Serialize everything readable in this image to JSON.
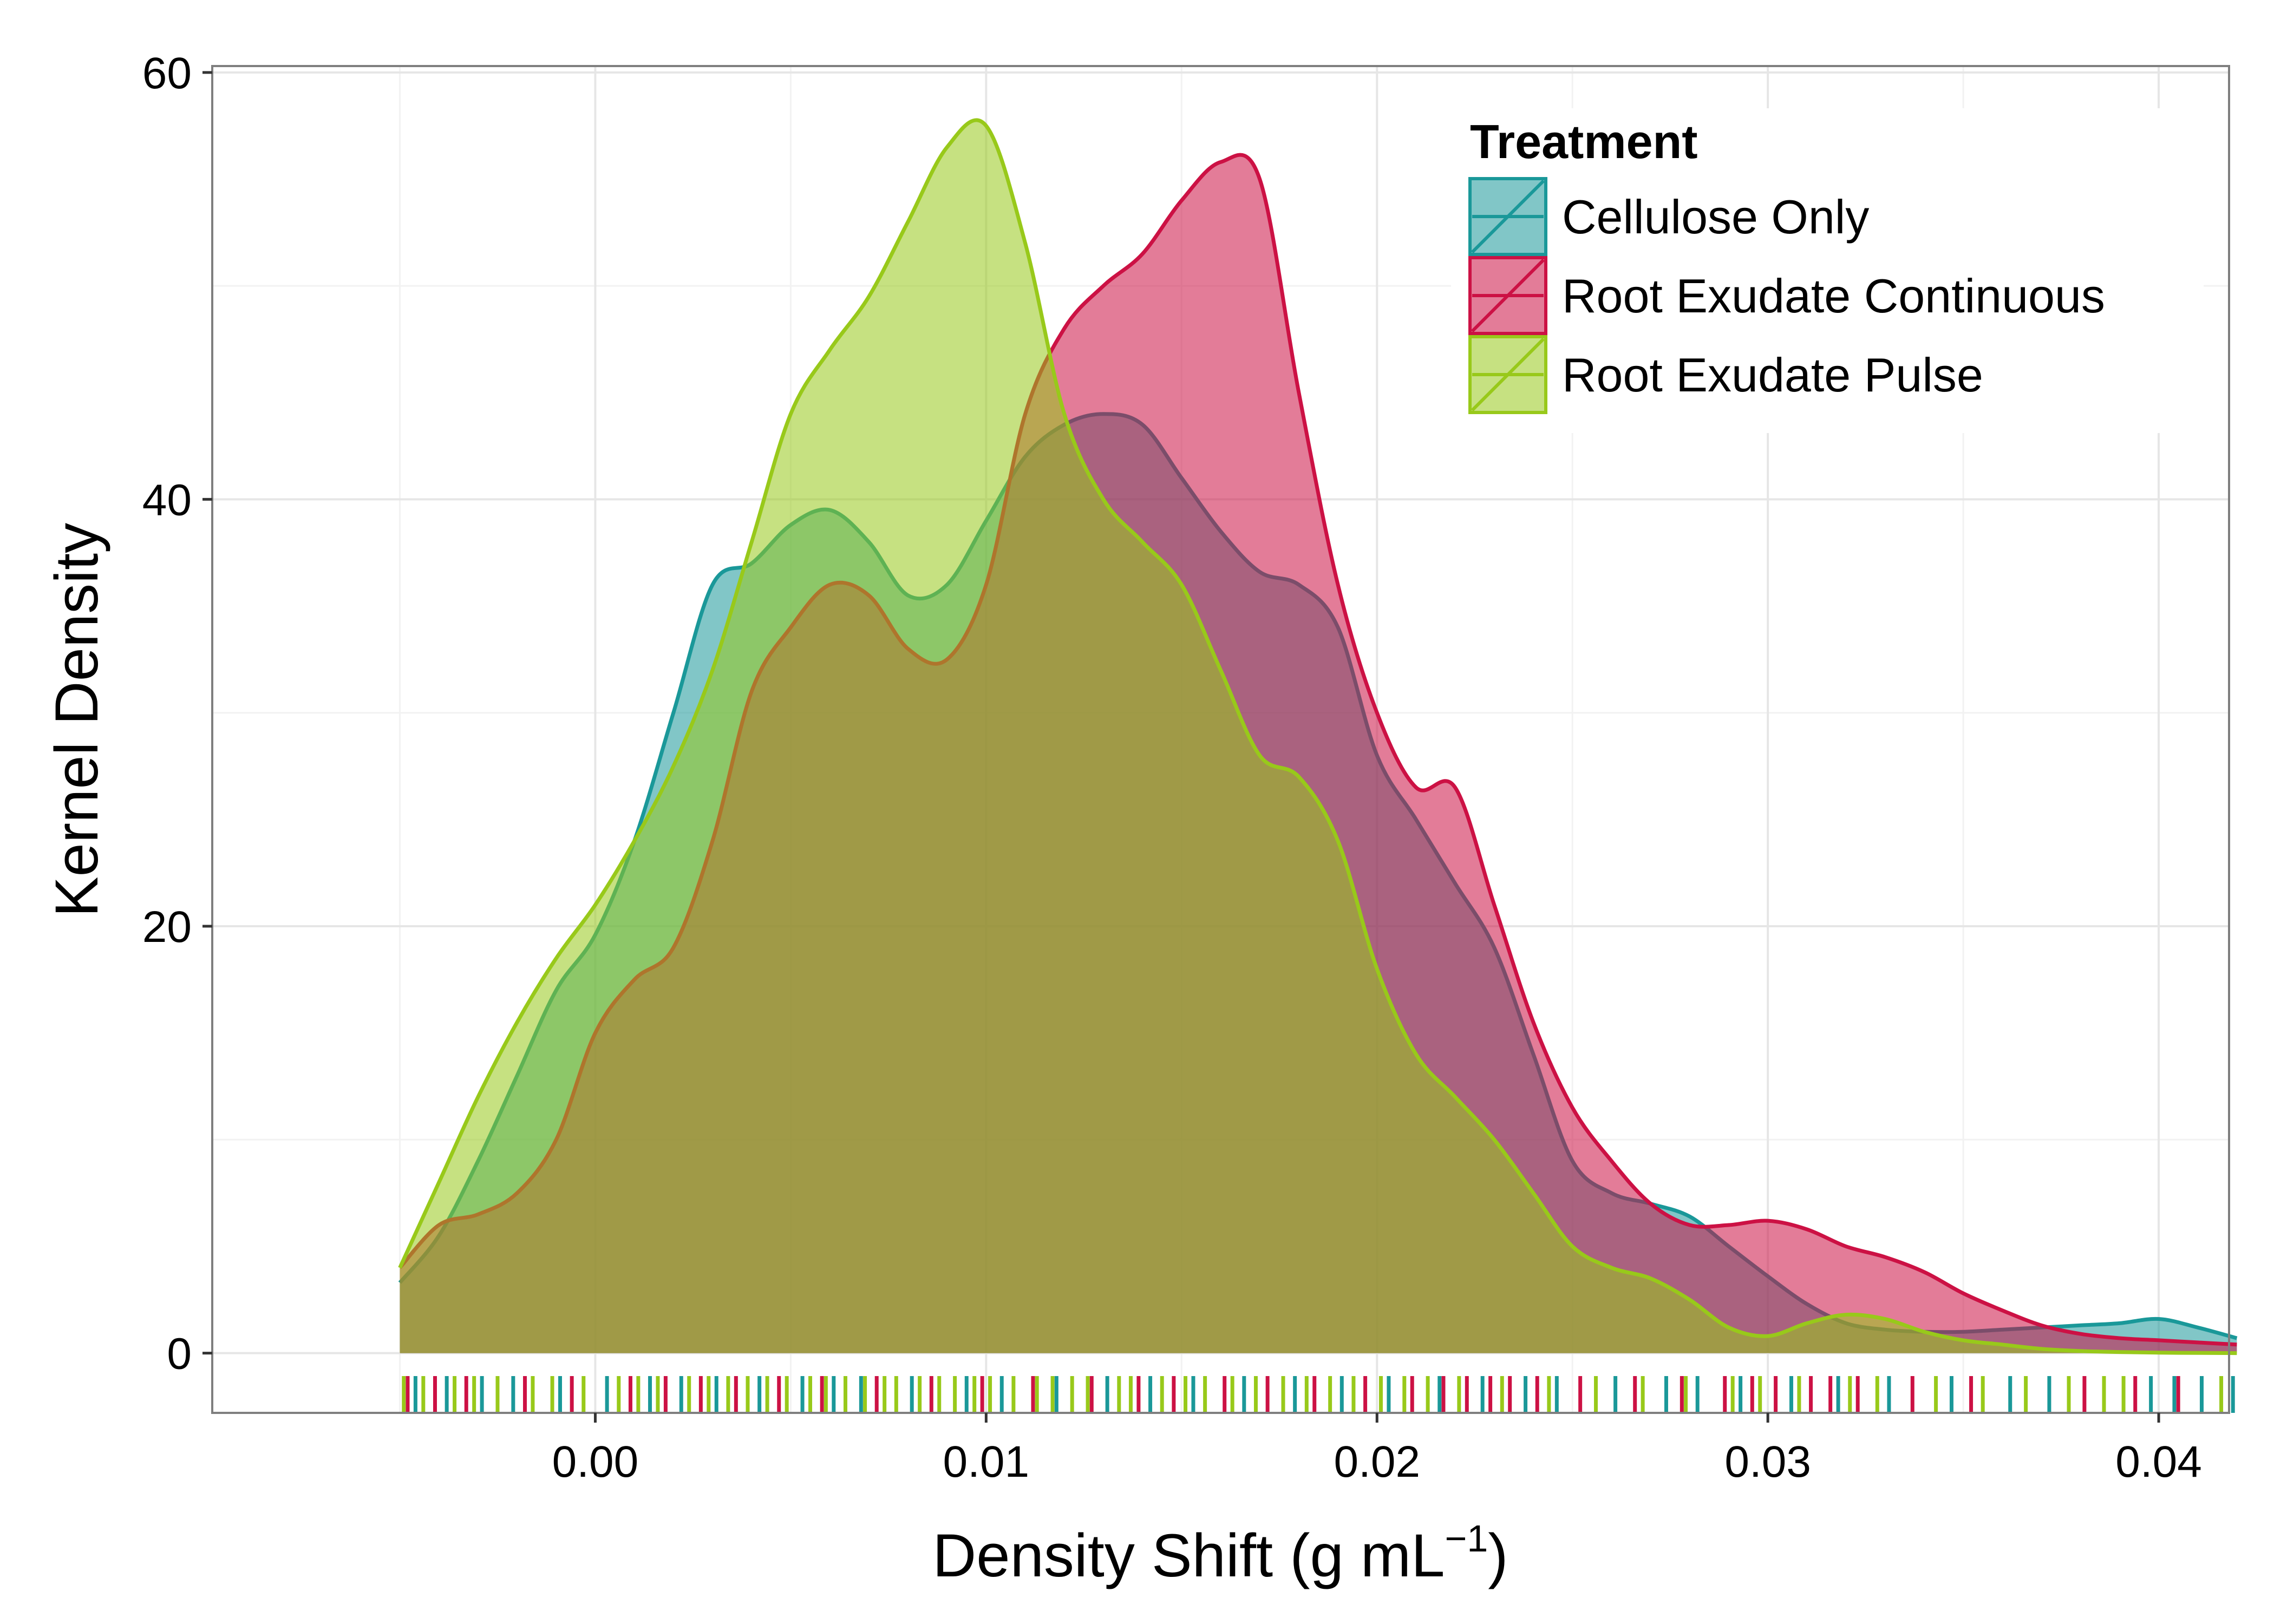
{
  "chart_data": {
    "type": "area",
    "title": "",
    "xlabel": "Density Shift (g mL",
    "xlabel_superscript": "−1",
    "xlabel_suffix": ")",
    "ylabel": "Kernel Density",
    "xlim": [
      -0.0098,
      0.0418
    ],
    "ylim": [
      -2.8,
      60.3
    ],
    "grid": true,
    "legend_position": "top-right",
    "x_ticks": [
      0.0,
      0.01,
      0.02,
      0.03,
      0.04
    ],
    "x_tick_labels": [
      "0.00",
      "0.01",
      "0.02",
      "0.03",
      "0.04"
    ],
    "y_ticks": [
      0,
      20,
      40,
      60
    ],
    "y_tick_labels": [
      "0",
      "20",
      "40",
      "60"
    ],
    "legend": {
      "title": "Treatment"
    },
    "series": [
      {
        "name": "Cellulose Only",
        "color": "#1a9899",
        "x": [
          -0.005,
          -0.004,
          -0.003,
          -0.002,
          -0.001,
          0.0,
          0.001,
          0.002,
          0.003,
          0.004,
          0.005,
          0.006,
          0.007,
          0.008,
          0.009,
          0.01,
          0.011,
          0.012,
          0.013,
          0.014,
          0.015,
          0.016,
          0.017,
          0.018,
          0.019,
          0.02,
          0.021,
          0.022,
          0.023,
          0.024,
          0.025,
          0.026,
          0.027,
          0.028,
          0.029,
          0.03,
          0.031,
          0.032,
          0.033,
          0.034,
          0.035,
          0.036,
          0.037,
          0.038,
          0.039,
          0.04,
          0.041,
          0.042
        ],
        "y": [
          3.3,
          5.5,
          9,
          13,
          17,
          19.6,
          24,
          30,
          36,
          37,
          38.8,
          39.5,
          38,
          35.5,
          36,
          39,
          42,
          43.5,
          44,
          43.5,
          41,
          38.5,
          36.6,
          36,
          34,
          28,
          25,
          22,
          19,
          14,
          9,
          7.5,
          7,
          6.4,
          5,
          3.6,
          2.3,
          1.4,
          1.1,
          1.0,
          1.0,
          1.1,
          1.2,
          1.3,
          1.4,
          1.6,
          1.2,
          0.7
        ]
      },
      {
        "name": "Root Exudate Continuous",
        "color": "#cc1144",
        "x": [
          -0.005,
          -0.004,
          -0.003,
          -0.002,
          -0.001,
          0.0,
          0.001,
          0.002,
          0.003,
          0.004,
          0.005,
          0.006,
          0.007,
          0.008,
          0.009,
          0.01,
          0.011,
          0.012,
          0.013,
          0.014,
          0.015,
          0.016,
          0.017,
          0.018,
          0.019,
          0.02,
          0.021,
          0.022,
          0.023,
          0.024,
          0.025,
          0.026,
          0.027,
          0.028,
          0.029,
          0.03,
          0.031,
          0.032,
          0.033,
          0.034,
          0.035,
          0.036,
          0.037,
          0.038,
          0.039,
          0.04,
          0.041,
          0.042
        ],
        "y": [
          4,
          6,
          6.5,
          7.5,
          10,
          15,
          17.5,
          19,
          24,
          31,
          34,
          36,
          35.5,
          33,
          32.5,
          36,
          44,
          48,
          50,
          51.5,
          54,
          55.8,
          55,
          45,
          36,
          30,
          26.5,
          26.5,
          21,
          15.5,
          11.5,
          9,
          7,
          6,
          6,
          6.2,
          5.8,
          5,
          4.5,
          3.8,
          2.8,
          2,
          1.3,
          0.9,
          0.7,
          0.6,
          0.5,
          0.4
        ]
      },
      {
        "name": "Root Exudate Pulse",
        "color": "#98c91a",
        "x": [
          -0.005,
          -0.004,
          -0.003,
          -0.002,
          -0.001,
          0.0,
          0.001,
          0.002,
          0.003,
          0.004,
          0.005,
          0.006,
          0.007,
          0.008,
          0.009,
          0.01,
          0.011,
          0.012,
          0.013,
          0.014,
          0.015,
          0.016,
          0.017,
          0.018,
          0.019,
          0.02,
          0.021,
          0.022,
          0.023,
          0.024,
          0.025,
          0.026,
          0.027,
          0.028,
          0.029,
          0.03,
          0.031,
          0.032,
          0.033,
          0.034,
          0.035,
          0.036,
          0.037,
          0.038,
          0.039,
          0.04,
          0.041,
          0.042
        ],
        "y": [
          4,
          8,
          12,
          15.5,
          18.5,
          21,
          24,
          27.5,
          32,
          38,
          44,
          47,
          49.5,
          53,
          56.5,
          57.5,
          52,
          44,
          40,
          38,
          36,
          32,
          28,
          27,
          24,
          18,
          14,
          12,
          10,
          7.5,
          5,
          4,
          3.5,
          2.5,
          1.2,
          0.8,
          1.4,
          1.8,
          1.6,
          1.0,
          0.6,
          0.4,
          0.2,
          0.1,
          0.05,
          0.02,
          0.01,
          0.0
        ]
      }
    ],
    "rug": [
      {
        "name": "Cellulose Only",
        "x": [
          -0.0046,
          -0.0038,
          -0.0029,
          -0.0021,
          -0.0009,
          0.0003,
          0.0014,
          0.0022,
          0.0031,
          0.0042,
          0.0053,
          0.0061,
          0.0068,
          0.0081,
          0.0095,
          0.0104,
          0.0118,
          0.0131,
          0.0142,
          0.0153,
          0.0166,
          0.0179,
          0.0191,
          0.0203,
          0.0216,
          0.0227,
          0.0238,
          0.0246,
          0.0261,
          0.0274,
          0.0282,
          0.0293,
          0.0306,
          0.0318,
          0.0331,
          0.0347,
          0.0362,
          0.0372,
          0.0398,
          0.0404,
          0.0411,
          0.0419
        ]
      },
      {
        "name": "Root Exudate Continuous",
        "x": [
          -0.0048,
          -0.0041,
          -0.0033,
          -0.0018,
          -0.0006,
          0.0009,
          0.0018,
          0.0027,
          0.0036,
          0.0047,
          0.0058,
          0.0072,
          0.0086,
          0.0099,
          0.0112,
          0.0127,
          0.0139,
          0.0148,
          0.0161,
          0.0172,
          0.0184,
          0.0197,
          0.0209,
          0.0217,
          0.0223,
          0.0229,
          0.0234,
          0.0241,
          0.0252,
          0.0266,
          0.0278,
          0.0289,
          0.0296,
          0.0302,
          0.0311,
          0.0316,
          0.0323,
          0.0337,
          0.0352,
          0.0381,
          0.0394,
          0.0405
        ]
      },
      {
        "name": "Root Exudate Pulse",
        "x": [
          -0.0049,
          -0.0044,
          -0.0036,
          -0.0031,
          -0.0025,
          -0.0016,
          -0.0011,
          -0.0003,
          0.0006,
          0.0011,
          0.0016,
          0.0024,
          0.0029,
          0.0034,
          0.0039,
          0.0044,
          0.0049,
          0.0055,
          0.0059,
          0.0064,
          0.0069,
          0.0074,
          0.0077,
          0.0083,
          0.0088,
          0.0092,
          0.0097,
          0.0101,
          0.0107,
          0.0113,
          0.0117,
          0.0122,
          0.0126,
          0.0134,
          0.0137,
          0.0145,
          0.0151,
          0.0156,
          0.0163,
          0.0169,
          0.0176,
          0.0182,
          0.0188,
          0.0194,
          0.0201,
          0.0207,
          0.0213,
          0.0221,
          0.0232,
          0.0244,
          0.0256,
          0.0268,
          0.0279,
          0.0291,
          0.0298,
          0.0308,
          0.0321,
          0.0328,
          0.0343,
          0.0355,
          0.0366,
          0.0377,
          0.0386,
          0.0391,
          0.0416
        ]
      }
    ]
  }
}
